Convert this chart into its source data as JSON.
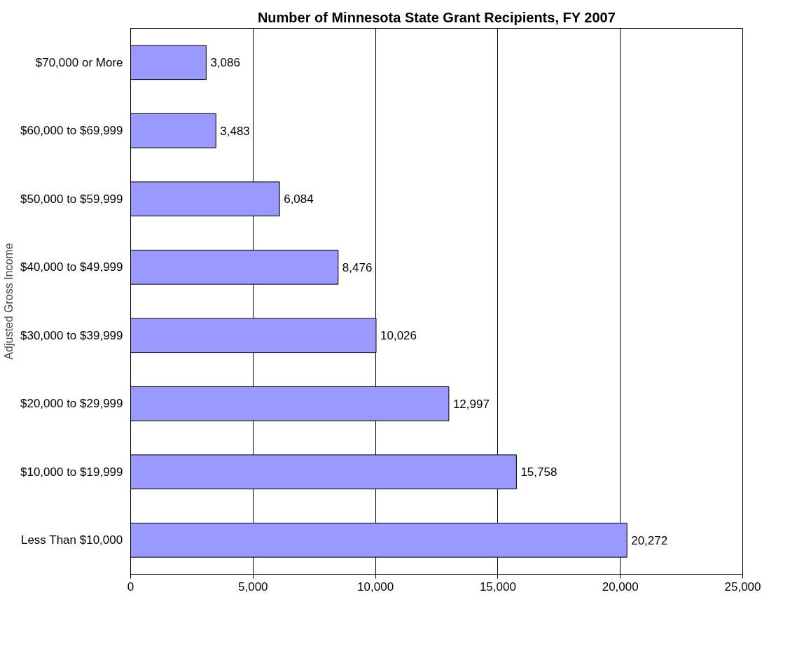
{
  "chart_data": {
    "type": "bar",
    "orientation": "horizontal",
    "title": "Number of Minnesota State Grant Recipients, FY 2007",
    "ylabel": "Adjusted Gross Income",
    "categories": [
      "$70,000 or More",
      "$60,000 to $69,999",
      "$50,000 to $59,999",
      "$40,000 to $49,999",
      "$30,000 to $39,999",
      "$20,000 to $29,999",
      "$10,000 to $19,999",
      "Less Than $10,000"
    ],
    "values": [
      3086,
      3483,
      6084,
      8476,
      10026,
      12997,
      15758,
      20272
    ],
    "value_labels": [
      "3,086",
      "3,483",
      "6,084",
      "8,476",
      "10,026",
      "12,997",
      "15,758",
      "20,272"
    ],
    "color": "#9999ff",
    "xlim": [
      0,
      25000
    ],
    "xticks": [
      0,
      {
        "value": 5000,
        "label": "5,000"
      },
      {
        "value": 10000,
        "label": "10,000"
      },
      {
        "value": 15000,
        "label": "15,000"
      },
      {
        "value": 20000,
        "label": "20,000"
      },
      {
        "value": 25000,
        "label": "25,000"
      }
    ],
    "grid": "x"
  }
}
